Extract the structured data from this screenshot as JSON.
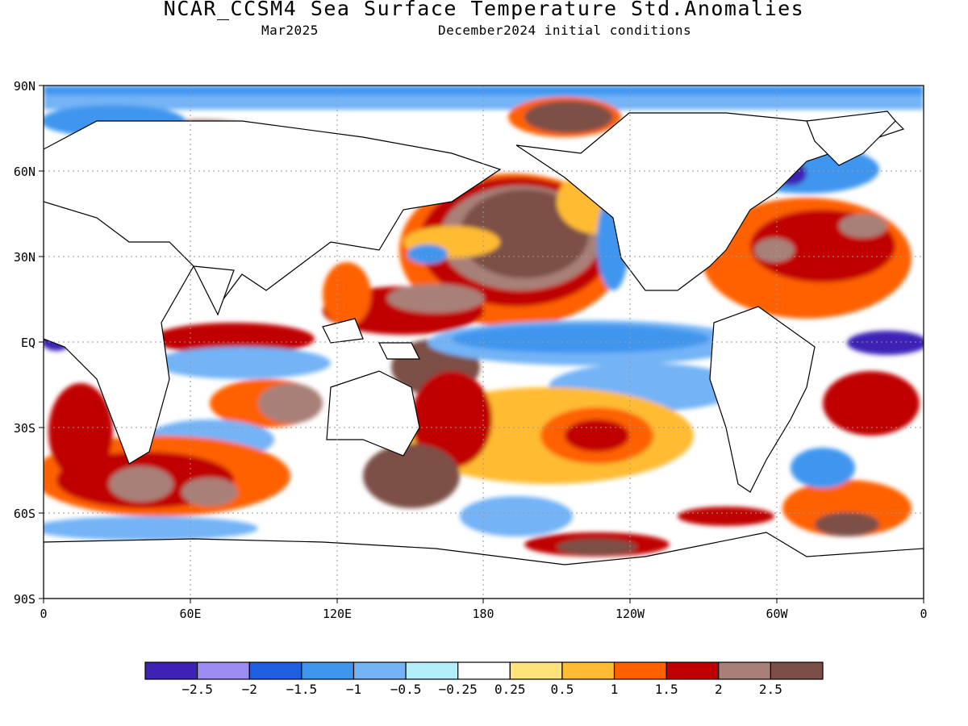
{
  "title": "NCAR_CCSM4 Sea Surface Temperature Std.Anomalies",
  "subtitle_left": "Mar2025",
  "subtitle_right": "December2024 initial conditions",
  "axes": {
    "lat_labels": [
      "90N",
      "60N",
      "30N",
      "EQ",
      "30S",
      "60S",
      "90S"
    ],
    "lon_labels": [
      "0",
      "60E",
      "120E",
      "180",
      "120W",
      "60W",
      "0"
    ]
  },
  "colorbar": {
    "colors": [
      "#3d22b5",
      "#9e8cf5",
      "#1f5fdf",
      "#3f96ef",
      "#73b3f6",
      "#b3eefa",
      "#ffffff",
      "#ffe27a",
      "#ffbb33",
      "#ff6000",
      "#c00000",
      "#a98078",
      "#7b4f47"
    ],
    "labels": [
      "−2.5",
      "−2",
      "−1.5",
      "−1",
      "−0.5",
      "−0.25",
      "0.25",
      "0.5",
      "1",
      "1.5",
      "2",
      "2.5"
    ]
  }
}
